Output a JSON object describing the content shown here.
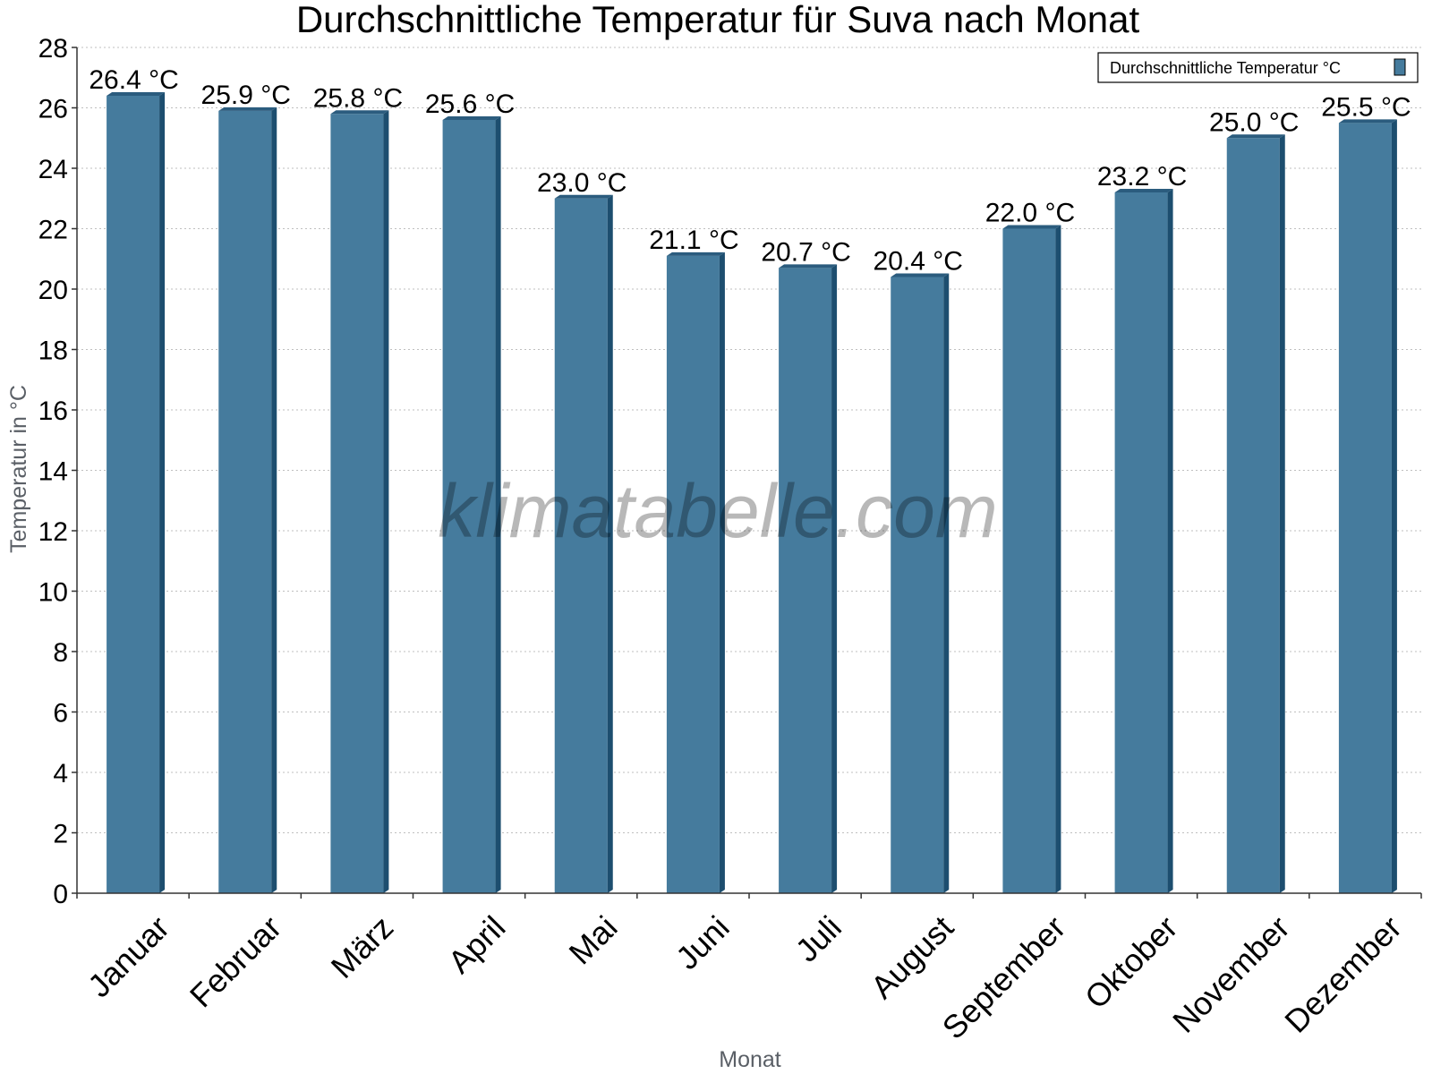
{
  "colors": {
    "bar_face": "#457b9d",
    "bar_side": "#1d4e6f",
    "bar_top": "#2b5c7e",
    "grid": "#bfbfbf",
    "axis": "#333333"
  },
  "watermark": "klimatabelle.com",
  "chart_data": {
    "type": "bar",
    "title": "Durchschnittliche Temperatur für Suva nach Monat",
    "xlabel": "Monat",
    "ylabel": "Temperatur in °C",
    "ylim": [
      0,
      28
    ],
    "yticks": [
      0,
      2,
      4,
      6,
      8,
      10,
      12,
      14,
      16,
      18,
      20,
      22,
      24,
      26,
      28
    ],
    "grid": true,
    "legend_position": "top-right",
    "categories": [
      "Januar",
      "Februar",
      "März",
      "April",
      "Mai",
      "Juni",
      "Juli",
      "August",
      "September",
      "Oktober",
      "November",
      "Dezember"
    ],
    "series": [
      {
        "name": "Durchschnittliche Temperatur °C",
        "values": [
          26.4,
          25.9,
          25.8,
          25.6,
          23.0,
          21.1,
          20.7,
          20.4,
          22.0,
          23.2,
          25.0,
          25.5
        ],
        "data_labels": [
          "26.4 °C",
          "25.9 °C",
          "25.8 °C",
          "25.6 °C",
          "23.0 °C",
          "21.1 °C",
          "20.7 °C",
          "20.4 °C",
          "22.0 °C",
          "23.2 °C",
          "25.0 °C",
          "25.5 °C"
        ]
      }
    ]
  }
}
